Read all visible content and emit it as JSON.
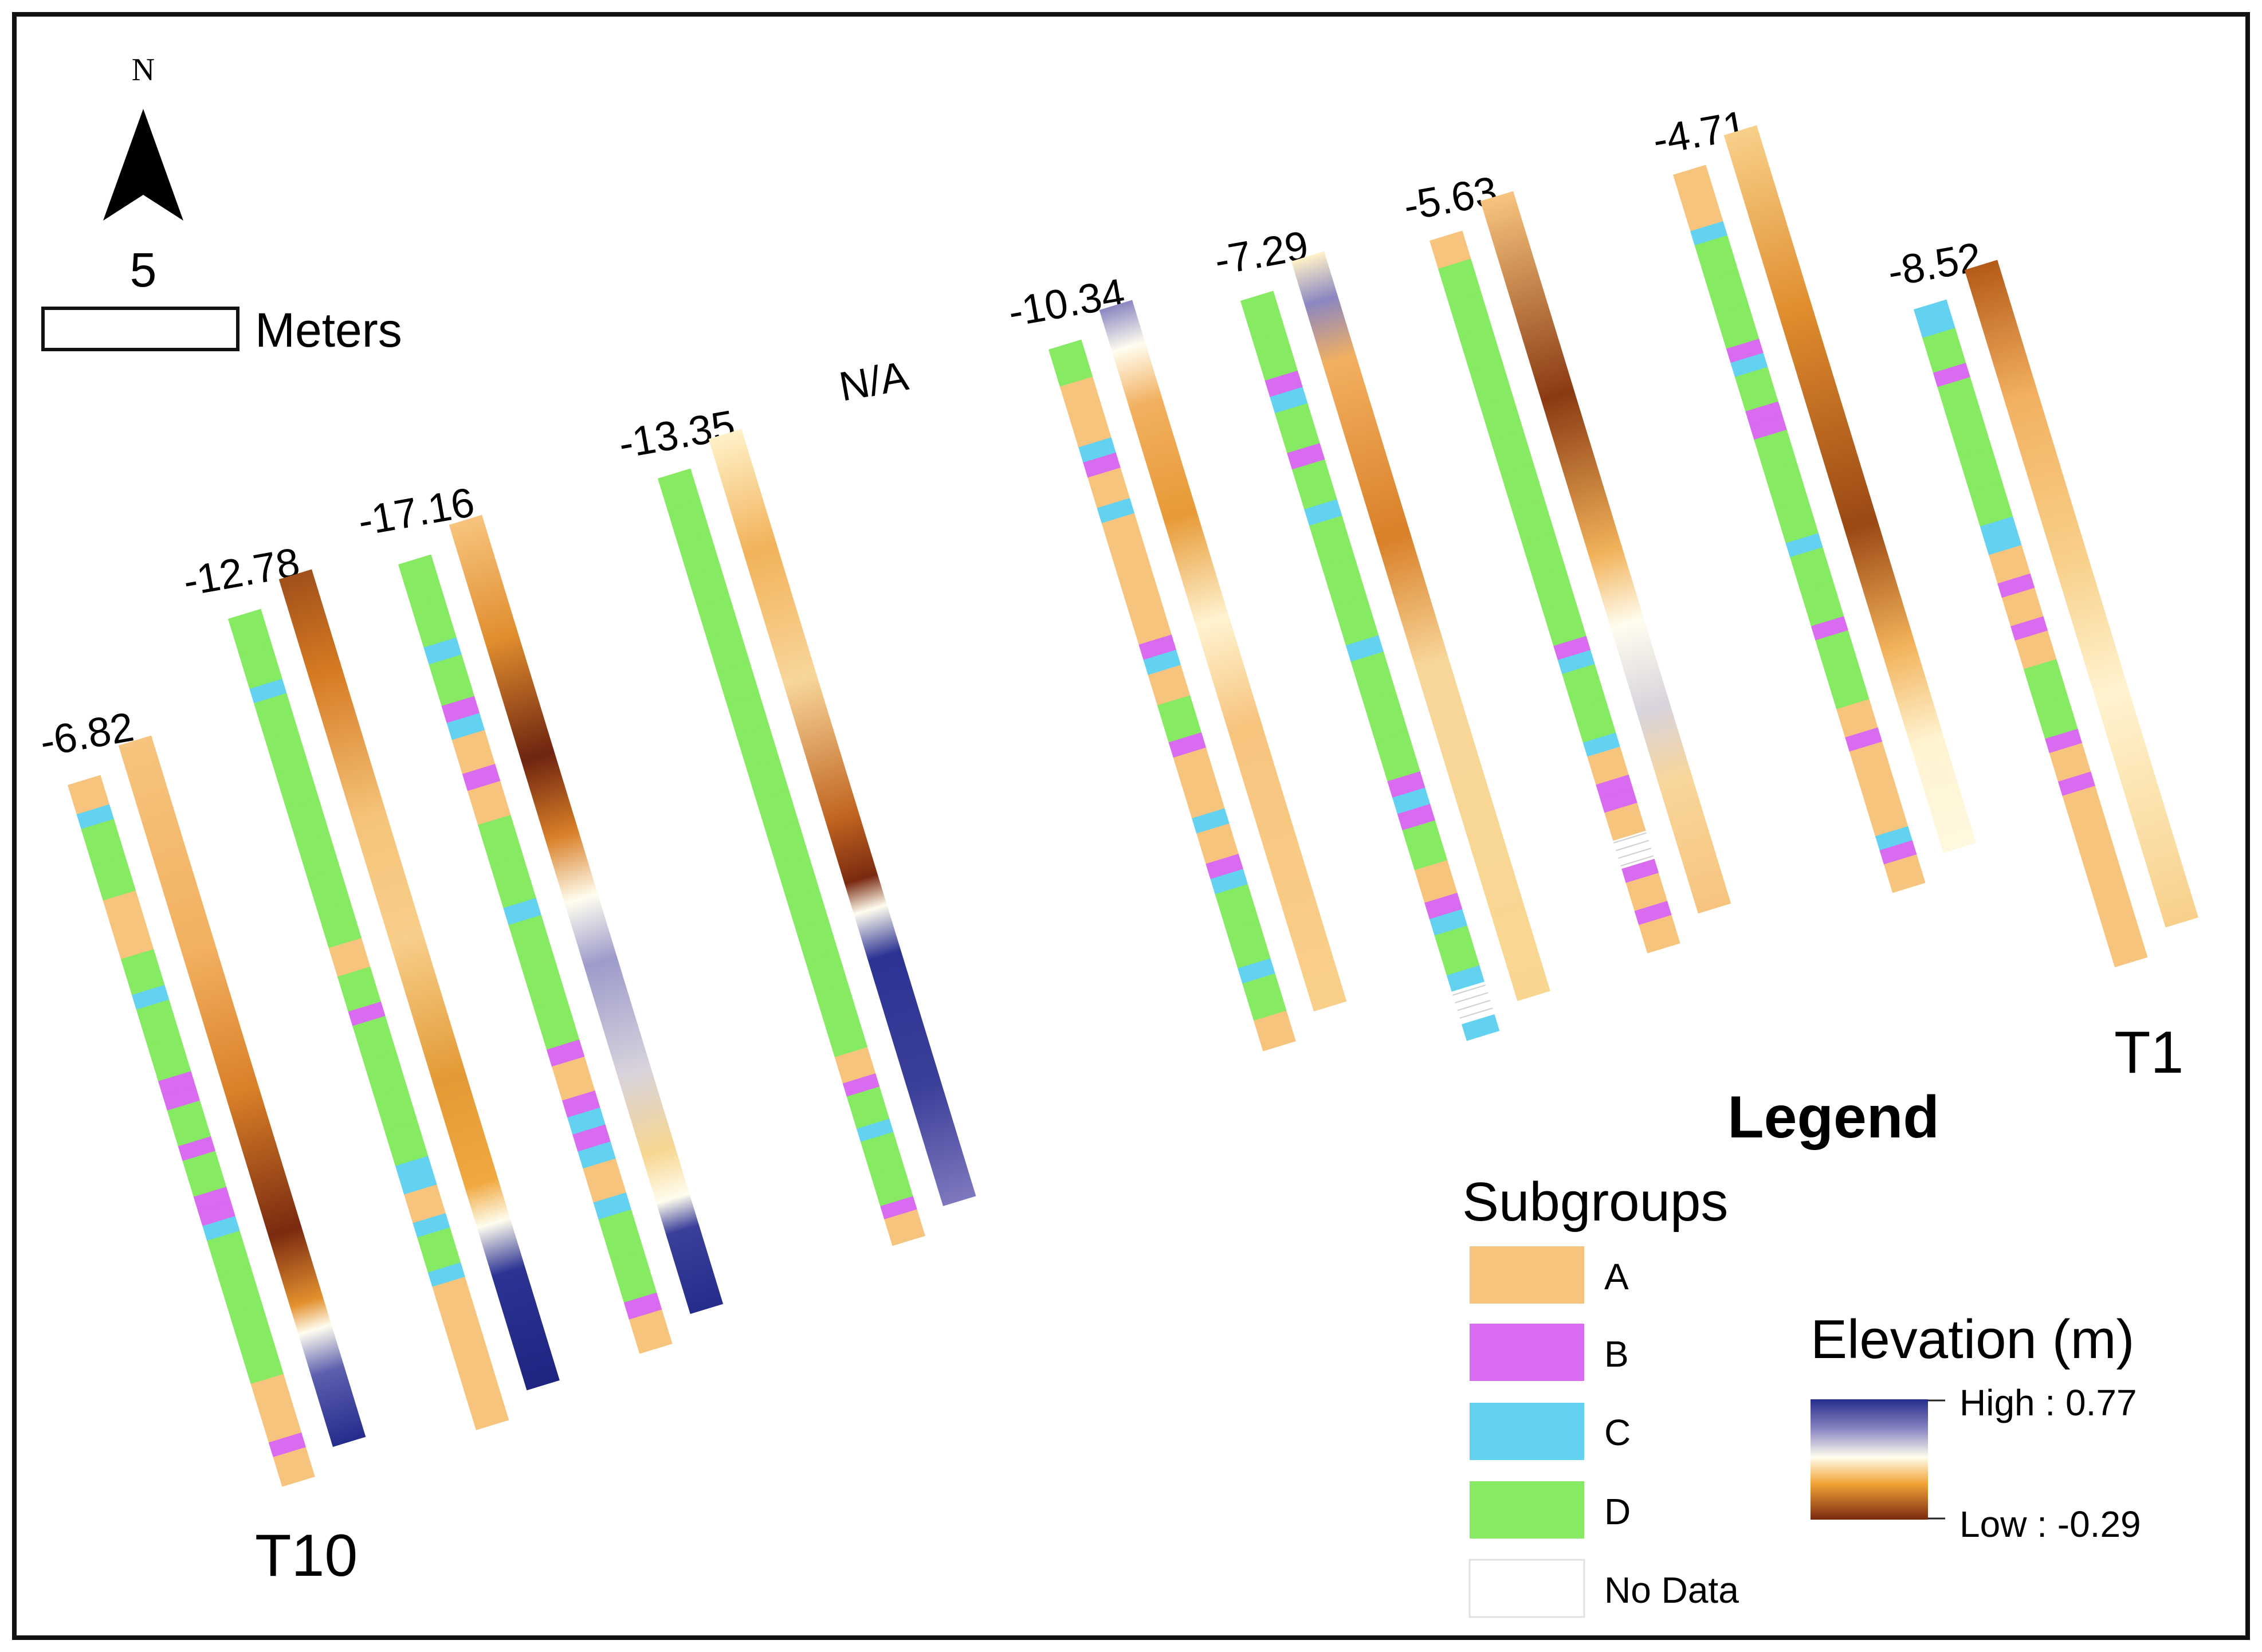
{
  "north_arrow": {
    "label": "N"
  },
  "scale_bar": {
    "value": "5",
    "unit": "Meters"
  },
  "transect_labels": {
    "first": "T1",
    "last": "T10"
  },
  "transects": [
    {
      "id": "T10",
      "offset": "-6.82",
      "subgroups": [
        "A",
        "C",
        "D",
        "D",
        "A",
        "A",
        "D",
        "C",
        "D",
        "D",
        "B",
        "B",
        "D",
        "B",
        "D",
        "B",
        "B",
        "C",
        "D",
        "D",
        "D",
        "D",
        "A",
        "A",
        "B",
        "A"
      ]
    },
    {
      "id": "T9",
      "offset": "-12.78",
      "subgroups": [
        "D",
        "D",
        "C",
        "D",
        "D",
        "D",
        "D",
        "D",
        "D",
        "D",
        "A",
        "D",
        "B",
        "D",
        "D",
        "D",
        "D",
        "C",
        "C",
        "A",
        "C",
        "D",
        "C",
        "A",
        "A",
        "A",
        "A",
        "A"
      ]
    },
    {
      "id": "T8",
      "offset": "-17.16",
      "subgroups": [
        "D",
        "D",
        "C",
        "D",
        "B",
        "C",
        "A",
        "B",
        "A",
        "D",
        "D",
        "C",
        "D",
        "D",
        "D",
        "B",
        "A",
        "B",
        "C",
        "B",
        "C",
        "A",
        "C",
        "D",
        "D",
        "B",
        "A"
      ]
    },
    {
      "id": "T7",
      "offset": "-13.35",
      "subgroups": [
        "D",
        "D",
        "D",
        "D",
        "D",
        "D",
        "D",
        "D",
        "D",
        "D",
        "D",
        "D",
        "D",
        "D",
        "D",
        "D",
        "D",
        "D",
        "A",
        "B",
        "D",
        "C",
        "D",
        "D",
        "B",
        "A"
      ]
    },
    {
      "id": "T6",
      "offset": "N/A",
      "subgroups": []
    },
    {
      "id": "T5",
      "offset": "-10.34",
      "subgroups": [
        "D",
        "A",
        "A",
        "C",
        "B",
        "A",
        "C",
        "A",
        "A",
        "A",
        "A",
        "B",
        "C",
        "A",
        "D",
        "B",
        "A",
        "A",
        "C",
        "A",
        "B",
        "C",
        "D",
        "D",
        "C",
        "D",
        "A"
      ]
    },
    {
      "id": "T4",
      "offset": "-7.29",
      "subgroups": [
        "D",
        "D",
        "B",
        "C",
        "D",
        "B",
        "D",
        "C",
        "D",
        "D",
        "D",
        "C",
        "D",
        "D",
        "D",
        "B",
        "C",
        "B",
        "D",
        "A",
        "B",
        "C",
        "D",
        "C",
        "N",
        "N",
        "C"
      ]
    },
    {
      "id": "T3",
      "offset": "-5.63",
      "subgroups": [
        "A",
        "D",
        "D",
        "D",
        "D",
        "D",
        "D",
        "D",
        "D",
        "D",
        "D",
        "D",
        "B",
        "C",
        "D",
        "D",
        "C",
        "A",
        "B",
        "B",
        "A",
        "N",
        "N",
        "B",
        "A",
        "B",
        "A"
      ]
    },
    {
      "id": "T2",
      "offset": "-4.71",
      "subgroups": [
        "A",
        "A",
        "C",
        "D",
        "D",
        "D",
        "B",
        "C",
        "D",
        "B",
        "B",
        "D",
        "D",
        "D",
        "C",
        "D",
        "D",
        "B",
        "D",
        "D",
        "A",
        "B",
        "A",
        "A",
        "A",
        "C",
        "B",
        "A"
      ]
    },
    {
      "id": "T1",
      "offset": "-8.52",
      "subgroups": [
        "C",
        "C",
        "D",
        "B",
        "D",
        "D",
        "D",
        "D",
        "C",
        "C",
        "A",
        "B",
        "A",
        "B",
        "A",
        "D",
        "D",
        "B",
        "A",
        "B",
        "A",
        "A",
        "A",
        "A",
        "A",
        "A"
      ]
    }
  ],
  "legend": {
    "title": "Legend",
    "subgroups_title": "Subgroups",
    "subgroups": [
      {
        "label": "A",
        "color": "#F7C47E"
      },
      {
        "label": "B",
        "color": "#D96BF0"
      },
      {
        "label": "C",
        "color": "#62D2F0"
      },
      {
        "label": "D",
        "color": "#86EA62"
      },
      {
        "label": "No Data",
        "color": "#FFFFFF"
      }
    ],
    "elevation": {
      "title": "Elevation (m)",
      "high_label": "High : 0.77",
      "low_label": "Low : -0.29",
      "high_value": 0.77,
      "low_value": -0.29,
      "ramp": [
        "#252C8C",
        "#8B87C2",
        "#FFFDEF",
        "#F2A436",
        "#7A2A10"
      ]
    }
  }
}
